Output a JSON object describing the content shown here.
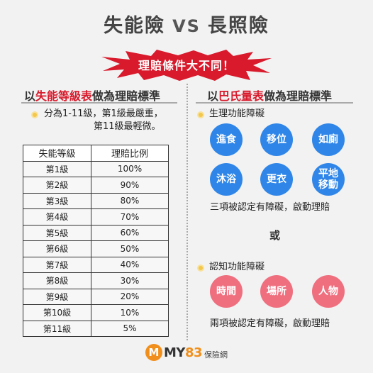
{
  "title": {
    "left": "失能險",
    "vs": "VS",
    "right": "長照險"
  },
  "banner": "理賠條件大不同！",
  "left_column": {
    "heading_prefix": "以",
    "heading_highlight": "失能等級表",
    "heading_suffix": "做為理賠標準",
    "note_line1": "分為1-11級，第1級最嚴重，",
    "note_line2": "第11級最輕微。",
    "table": {
      "headers": [
        "失能等級",
        "理賠比例"
      ],
      "rows": [
        [
          "第1級",
          "100%"
        ],
        [
          "第2級",
          "90%"
        ],
        [
          "第3級",
          "80%"
        ],
        [
          "第4級",
          "70%"
        ],
        [
          "第5級",
          "60%"
        ],
        [
          "第6級",
          "50%"
        ],
        [
          "第7級",
          "40%"
        ],
        [
          "第8級",
          "30%"
        ],
        [
          "第9級",
          "20%"
        ],
        [
          "第10級",
          "10%"
        ],
        [
          "第11級",
          "5%"
        ]
      ]
    }
  },
  "right_column": {
    "heading_prefix": "以",
    "heading_highlight": "巴氏量表",
    "heading_suffix": "做為理賠標準",
    "physical": {
      "label": "生理功能障礙",
      "items": [
        "進食",
        "移位",
        "如廁",
        "沐浴",
        "更衣",
        "平地\n移動"
      ],
      "rule": "三項被認定有障礙，啟動理賠"
    },
    "or": "或",
    "cognitive": {
      "label": "認知功能障礙",
      "items": [
        "時間",
        "場所",
        "人物"
      ],
      "rule": "兩項被認定有障礙，啟動理賠"
    }
  },
  "logo": {
    "m": "M",
    "text_a": "MY",
    "text_b": "83",
    "sub": "保險網"
  },
  "colors": {
    "accent_red": "#d81a2c",
    "blue": "#2f86e8",
    "pink": "#ef6f7f",
    "bullet": "#f3c74b",
    "logo_orange": "#f18f1c"
  }
}
